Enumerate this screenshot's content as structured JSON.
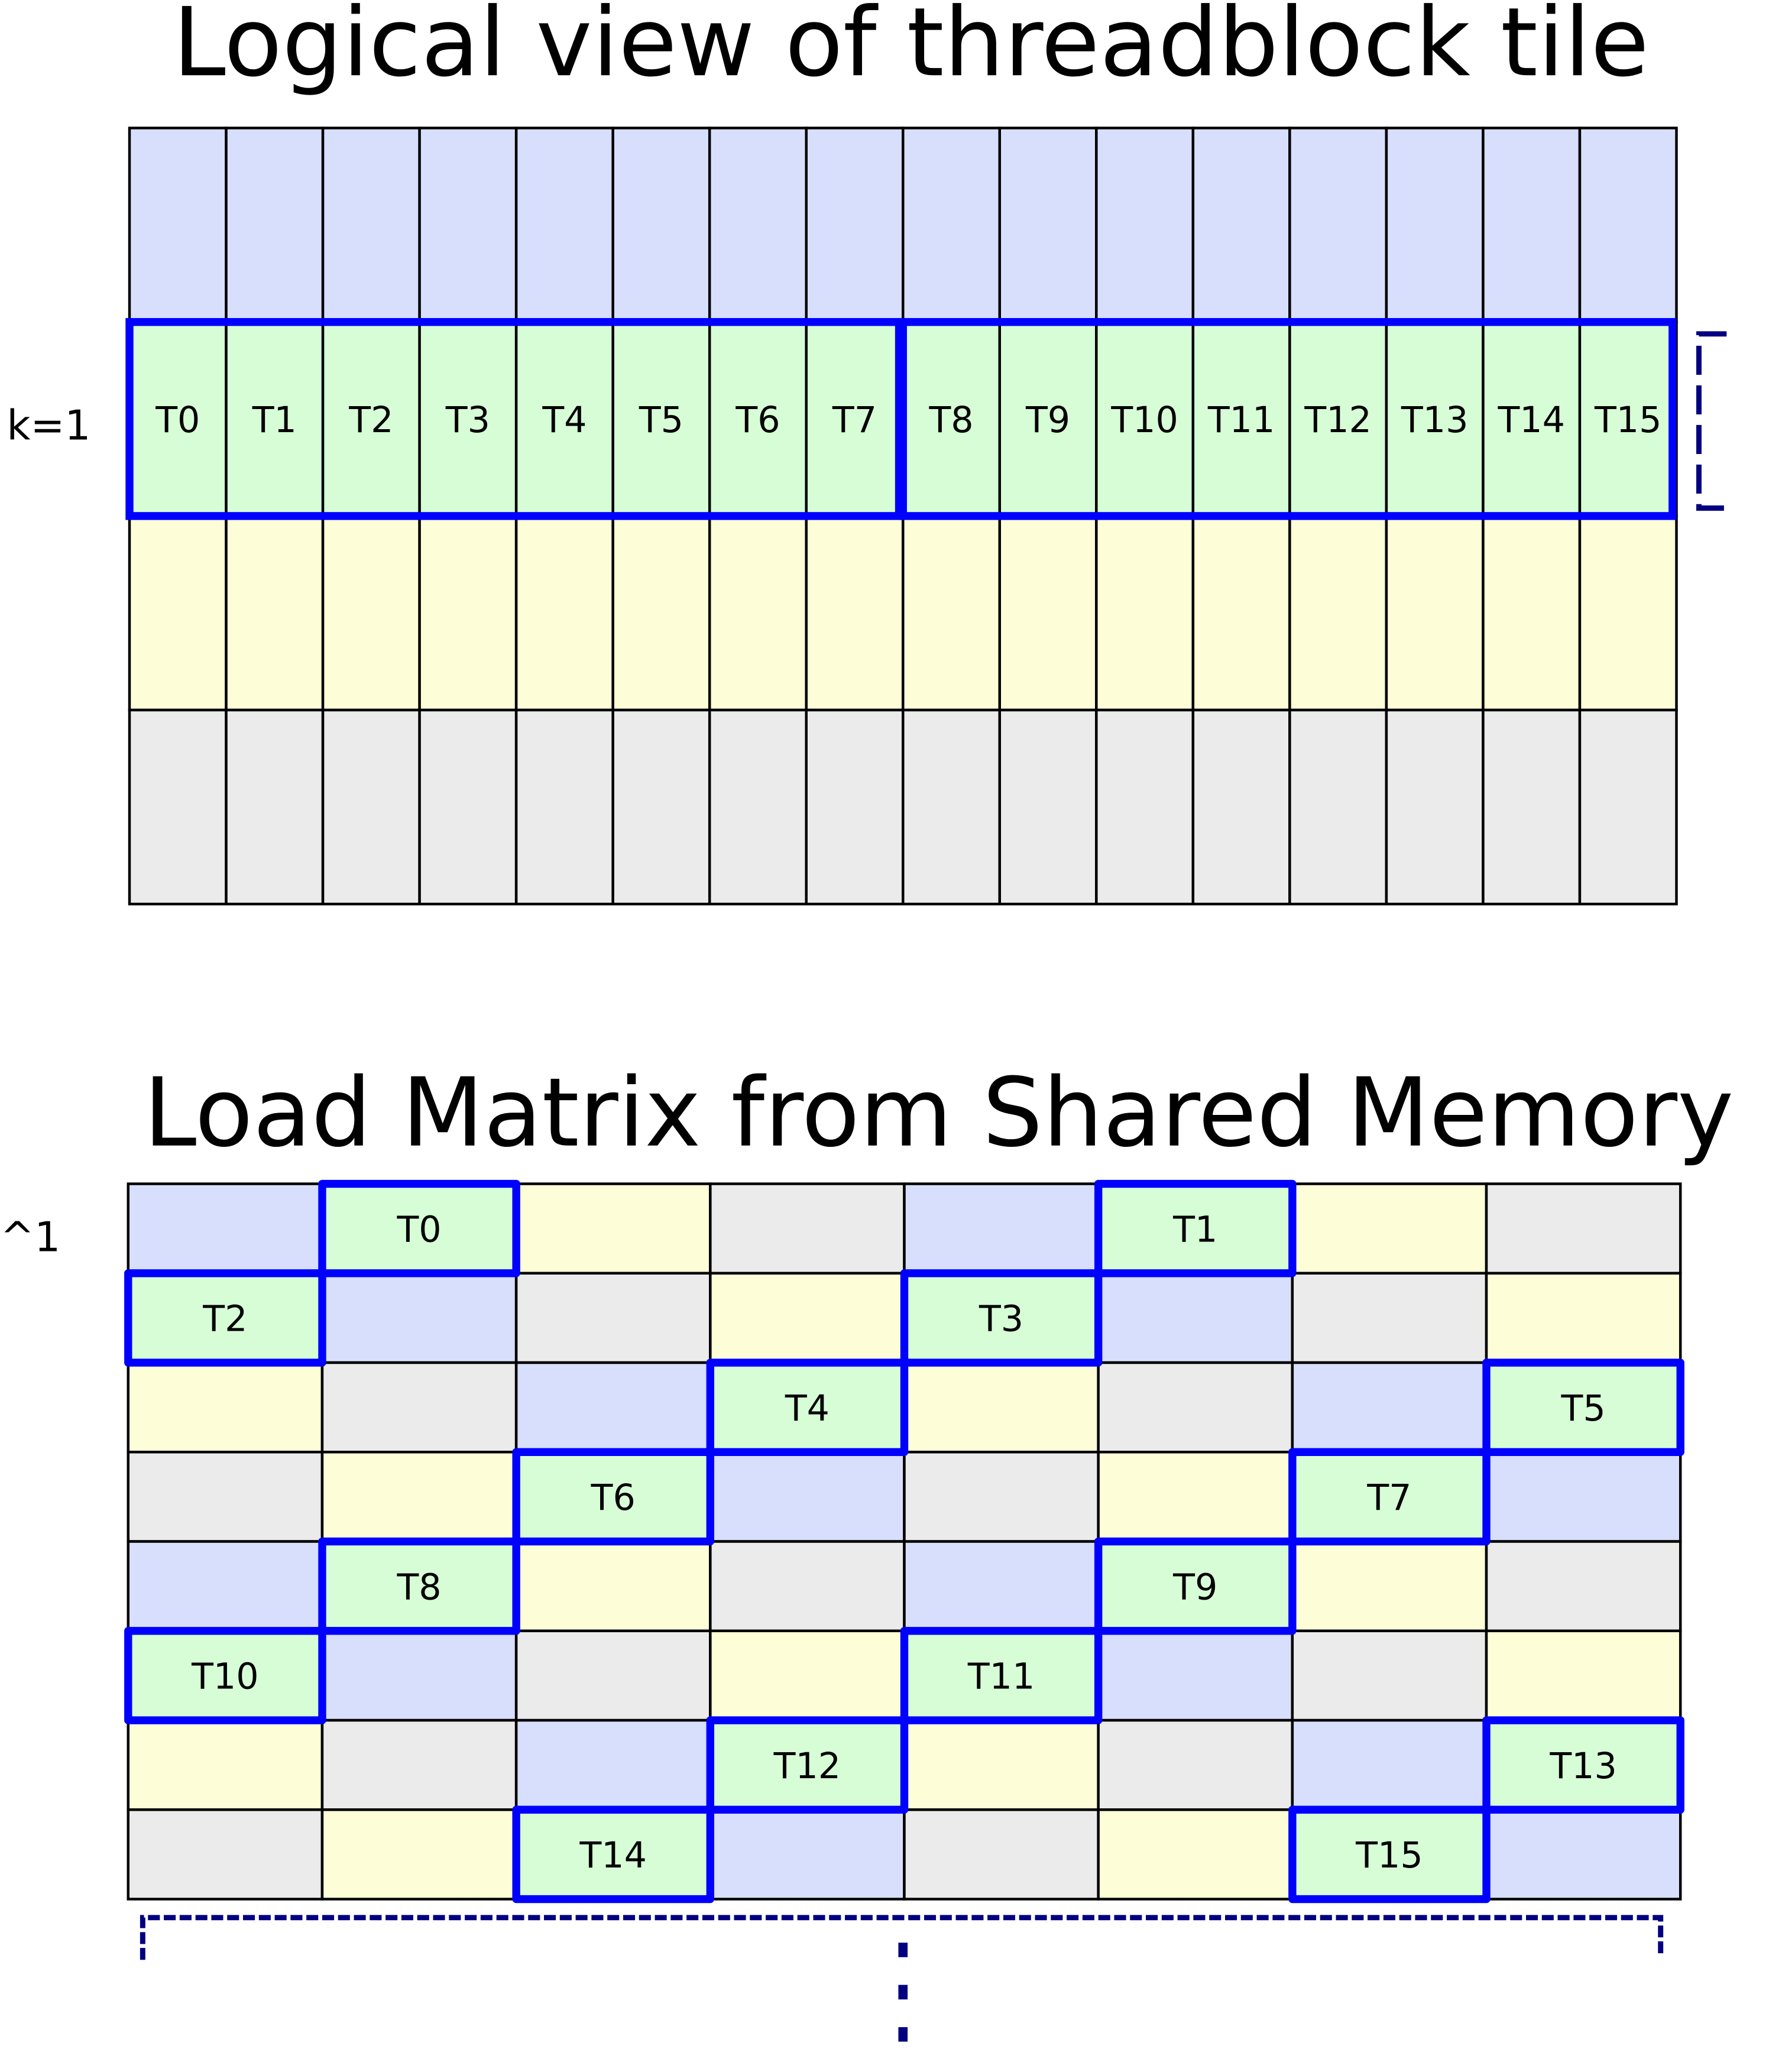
{
  "colors": {
    "blue": "#d7dffd",
    "green": "#d7fdd7",
    "yellow": "#fdfdd7",
    "gray": "#ebebeb",
    "highlight": "#0000ff",
    "bracket": "#000080",
    "grid_line": "#000000"
  },
  "logical_view": {
    "title": "Logical view of threadblock tile",
    "row_label": "k=1",
    "row_colors": [
      "blue",
      "green",
      "yellow",
      "gray"
    ],
    "columns": 16,
    "highlighted_row": 1,
    "threads": [
      "T0",
      "T1",
      "T2",
      "T3",
      "T4",
      "T5",
      "T6",
      "T7",
      "T8",
      "T9",
      "T10",
      "T11",
      "T12",
      "T13",
      "T14",
      "T15"
    ],
    "highlight_groups": [
      [
        0,
        7
      ],
      [
        8,
        15
      ]
    ]
  },
  "shared_memory": {
    "title": "Load Matrix from Shared Memory",
    "corner_label": "^1",
    "cells": [
      [
        "blue",
        "green",
        "yellow",
        "gray",
        "blue",
        "green",
        "yellow",
        "gray"
      ],
      [
        "green",
        "blue",
        "gray",
        "yellow",
        "green",
        "blue",
        "gray",
        "yellow"
      ],
      [
        "yellow",
        "gray",
        "blue",
        "green",
        "yellow",
        "gray",
        "blue",
        "green"
      ],
      [
        "gray",
        "yellow",
        "green",
        "blue",
        "gray",
        "yellow",
        "green",
        "blue"
      ],
      [
        "blue",
        "green",
        "yellow",
        "gray",
        "blue",
        "green",
        "yellow",
        "gray"
      ],
      [
        "green",
        "blue",
        "gray",
        "yellow",
        "green",
        "blue",
        "gray",
        "yellow"
      ],
      [
        "yellow",
        "gray",
        "blue",
        "green",
        "yellow",
        "gray",
        "blue",
        "green"
      ],
      [
        "gray",
        "yellow",
        "green",
        "blue",
        "gray",
        "yellow",
        "green",
        "blue"
      ]
    ],
    "threads": [
      {
        "label": "T0",
        "row": 0,
        "col": 1
      },
      {
        "label": "T1",
        "row": 0,
        "col": 5
      },
      {
        "label": "T2",
        "row": 1,
        "col": 0
      },
      {
        "label": "T3",
        "row": 1,
        "col": 4
      },
      {
        "label": "T4",
        "row": 2,
        "col": 3
      },
      {
        "label": "T5",
        "row": 2,
        "col": 7
      },
      {
        "label": "T6",
        "row": 3,
        "col": 2
      },
      {
        "label": "T7",
        "row": 3,
        "col": 6
      },
      {
        "label": "T8",
        "row": 4,
        "col": 1
      },
      {
        "label": "T9",
        "row": 4,
        "col": 5
      },
      {
        "label": "T10",
        "row": 5,
        "col": 0
      },
      {
        "label": "T11",
        "row": 5,
        "col": 4
      },
      {
        "label": "T12",
        "row": 6,
        "col": 3
      },
      {
        "label": "T13",
        "row": 6,
        "col": 7
      },
      {
        "label": "T14",
        "row": 7,
        "col": 2
      },
      {
        "label": "T15",
        "row": 7,
        "col": 6
      }
    ]
  }
}
